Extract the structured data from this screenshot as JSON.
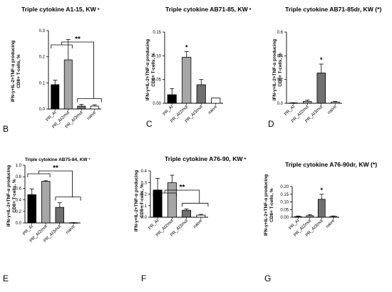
{
  "figure_title": "",
  "chart_data": [
    {
      "type": "bar",
      "panel_label": "B",
      "title": "Triple cytokine A1-15, KW",
      "title_suffix": "*",
      "ylabel_line1": "IFN-γ+IL-2+TNF-α producing",
      "ylabel_line2": "CD8+ T-cells, %",
      "ylim": [
        0,
        0.3
      ],
      "yticks": [
        "0.0",
        "0.1",
        "0.2",
        "0.3"
      ],
      "categories": [
        "PR_AI",
        "PR_AI2mut",
        "PR_AI3mut",
        "naive"
      ],
      "values": [
        0.093,
        0.188,
        0.011,
        0.011
      ],
      "errors": [
        0.017,
        0.078,
        0.007,
        0.005
      ],
      "colors": [
        "#000000",
        "#a6a6a6",
        "#707070",
        "#ffffff"
      ],
      "star_bars": [],
      "bracket_label": "**"
    },
    {
      "type": "bar",
      "panel_label": "C",
      "title": "Triple cytokine AB71-85, KW",
      "title_suffix": "*",
      "ylabel_line1": "IFN-γ+IL-2+TNF-α producing",
      "ylabel_line2": "CD8+ T-cells, %",
      "ylim": [
        0,
        0.15
      ],
      "yticks": [
        "0.00",
        "0.05",
        "0.10",
        "0.15"
      ],
      "categories": [
        "PR_AI",
        "PR_AI2mut",
        "PR_AI3mut",
        "naive"
      ],
      "values": [
        0.018,
        0.097,
        0.039,
        0.011
      ],
      "errors": [
        0.013,
        0.012,
        0.011,
        0.0
      ],
      "colors": [
        "#000000",
        "#a6a6a6",
        "#707070",
        "#ffffff"
      ],
      "star_bars": [
        1
      ],
      "star_label": "*",
      "bracket_label": ""
    },
    {
      "type": "bar",
      "panel_label": "D",
      "title": "Triple cytokine AB71-85dr, KW (*)",
      "title_suffix": "",
      "ylabel_line1": "IFN-γ+IL-2+TNF-α producing",
      "ylabel_line2": "CD8+ T-cells, %",
      "ylim": [
        0,
        0.6
      ],
      "yticks": [
        "0.0",
        "0.2",
        "0.4",
        "0.6"
      ],
      "categories": [
        "PR_AI",
        "PR_AI2mut",
        "PR_AI3mut",
        "naive"
      ],
      "values": [
        0.003,
        0.015,
        0.255,
        0.01
      ],
      "errors": [
        0.002,
        0.012,
        0.075,
        0.006
      ],
      "colors": [
        "#000000",
        "#a6a6a6",
        "#707070",
        "#ffffff"
      ],
      "star_bars": [
        2
      ],
      "star_label": "*",
      "bracket_label": ""
    },
    {
      "type": "bar",
      "panel_label": "E",
      "title": "Triple cytokine AB75-84, KW",
      "title_suffix": "*",
      "ylabel_line1": "IFN-γ+IL-2+TNF-α producing",
      "ylabel_line2": "CD8+ T-cells, %",
      "ylim": [
        0,
        1.0
      ],
      "yticks": [
        "0.0",
        "0.2",
        "0.4",
        "0.6",
        "0.8",
        "1.0"
      ],
      "categories": [
        "PR_AI",
        "PR_AI2mut",
        "PR_AI3mut",
        "naive"
      ],
      "values": [
        0.49,
        0.72,
        0.27,
        0.003
      ],
      "errors": [
        0.1,
        0.01,
        0.08,
        0.002
      ],
      "colors": [
        "#000000",
        "#a6a6a6",
        "#707070",
        "#ffffff"
      ],
      "star_bars": [],
      "bracket_label": "**"
    },
    {
      "type": "bar",
      "panel_label": "F",
      "title": "Triple cytokine A76-90, KW",
      "title_suffix": "*",
      "ylabel_line1": "IFN-γ+IL-2+TNF-α producing",
      "ylabel_line2": "CD8+ T-cells, %",
      "ylim": [
        0,
        0.4
      ],
      "yticks": [
        "0.0",
        "0.1",
        "0.2",
        "0.3",
        "0.4"
      ],
      "categories": [
        "PR_AI",
        "PR_AI2mut",
        "PR_AI3mut",
        "naive"
      ],
      "values": [
        0.235,
        0.298,
        0.06,
        0.018
      ],
      "errors": [
        0.1,
        0.065,
        0.012,
        0.007
      ],
      "colors": [
        "#000000",
        "#a6a6a6",
        "#707070",
        "#ffffff"
      ],
      "star_bars": [],
      "bracket_label": "**"
    },
    {
      "type": "bar",
      "panel_label": "G",
      "title": "Triple cytokine A76-90dr, KW (*)",
      "title_suffix": "",
      "ylabel_line1": "IFN-γ+IL-2+TNF-α producing",
      "ylabel_line2": "CD8+ T-cells, %",
      "ylim": [
        0,
        0.2
      ],
      "yticks": [
        "0.00",
        "0.05",
        "0.10",
        "0.15",
        "0.20"
      ],
      "categories": [
        "PR_AI",
        "PR_AI2mut",
        "PR_AI3mut",
        "naive"
      ],
      "values": [
        0.004,
        0.01,
        0.117,
        0.005
      ],
      "errors": [
        0.004,
        0.007,
        0.033,
        0.003
      ],
      "colors": [
        "#000000",
        "#a6a6a6",
        "#707070",
        "#ffffff"
      ],
      "star_bars": [
        2
      ],
      "star_label": "*",
      "bracket_label": ""
    }
  ]
}
